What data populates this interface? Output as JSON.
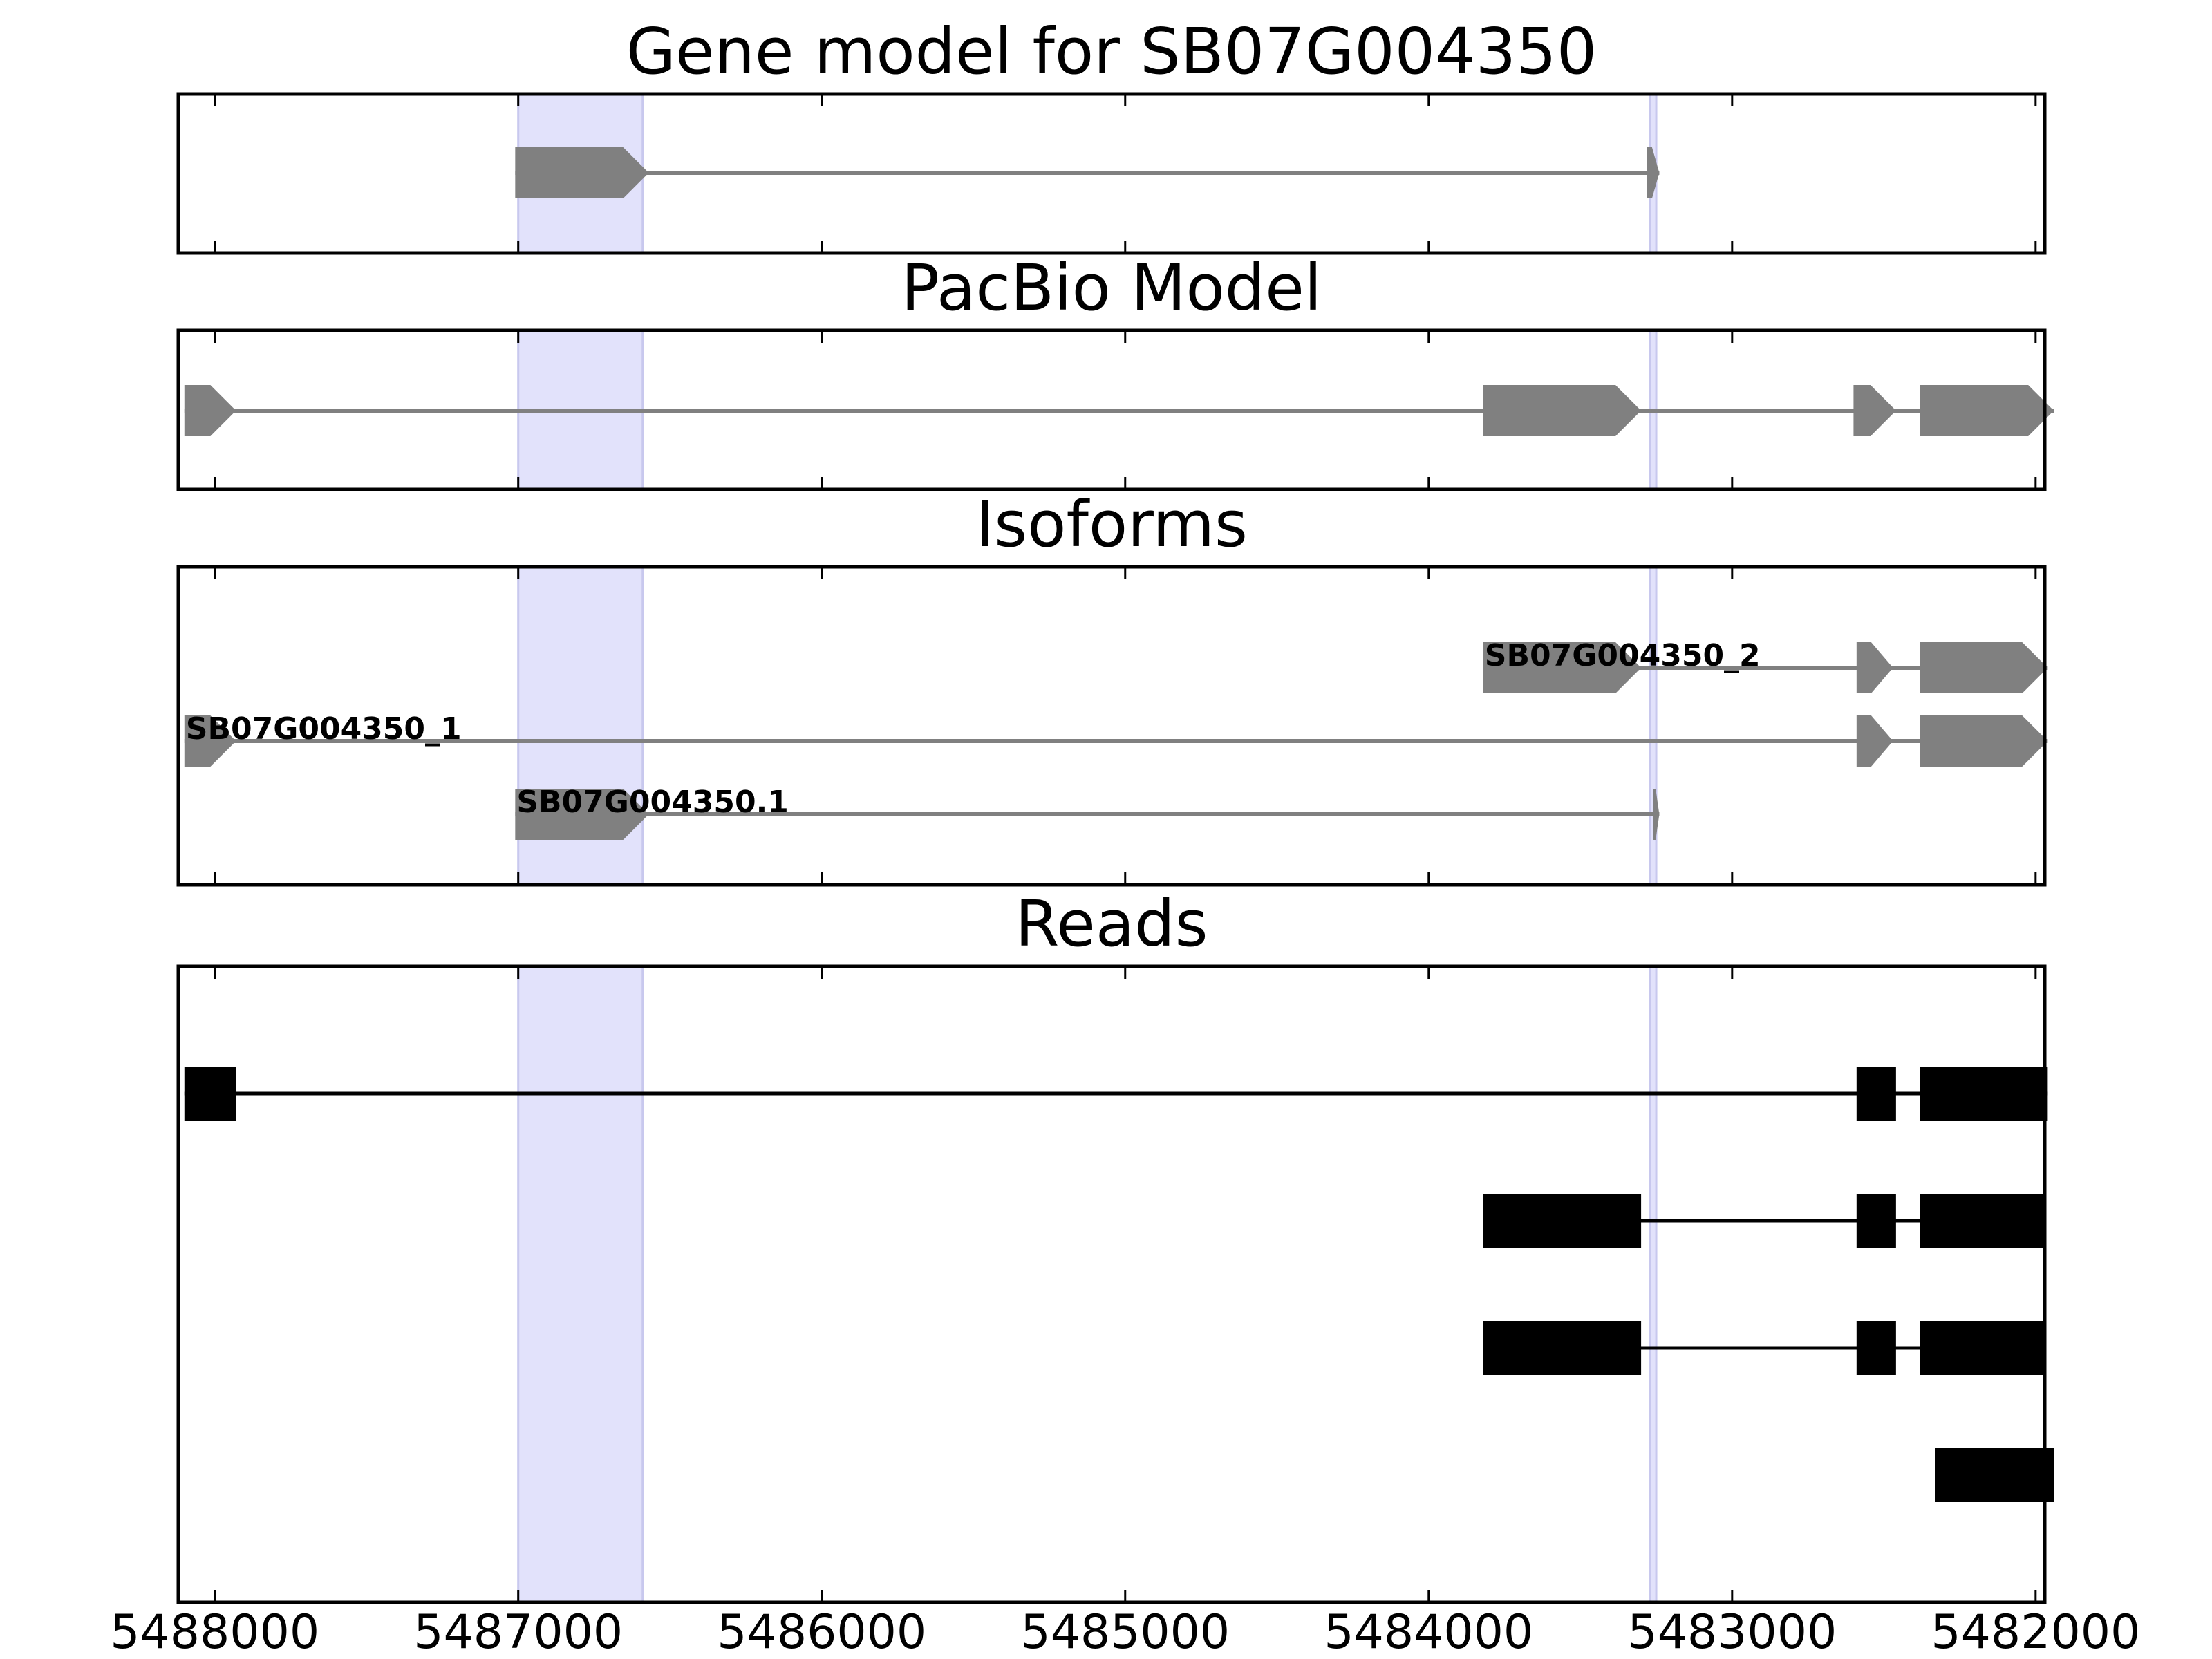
{
  "chart_data": {
    "type": "gene-track",
    "x_axis": {
      "reversed": true,
      "xlim": [
        5488120,
        5481970
      ],
      "ticks": [
        5488000,
        5487000,
        5486000,
        5485000,
        5484000,
        5483000,
        5482000
      ],
      "tick_labels": [
        "5488000",
        "5487000",
        "5486000",
        "5485000",
        "5484000",
        "5483000",
        "5482000"
      ]
    },
    "highlight_regions": [
      {
        "start": 5487000,
        "end": 5486590
      },
      {
        "start": 5483270,
        "end": 5483250
      }
    ],
    "colors": {
      "model": "#808080",
      "read": "#000000",
      "highlight": "#e2e2fb",
      "highlight_edge": "#c8c8ee"
    },
    "panels": [
      {
        "title": "Gene model for SB07G004350",
        "tracks": [
          {
            "label": "",
            "exons": [
              [
                5487010,
                5486570
              ],
              [
                5483280,
                5483240
              ]
            ]
          }
        ]
      },
      {
        "title": "PacBio Model",
        "tracks": [
          {
            "label": "",
            "exons": [
              [
                5488100,
                5487930
              ],
              [
                5483820,
                5483300
              ],
              [
                5482600,
                5482460
              ],
              [
                5482380,
                5481940
              ]
            ]
          }
        ]
      },
      {
        "title": "Isoforms",
        "tracks": [
          {
            "label": "SB07G004350_2",
            "exons": [
              [
                5483820,
                5483300
              ],
              [
                5482590,
                5482470
              ],
              [
                5482380,
                5481960
              ]
            ]
          },
          {
            "label": "SB07G004350_1",
            "exons": [
              [
                5488100,
                5487930
              ],
              [
                5482590,
                5482470
              ],
              [
                5482380,
                5481960
              ]
            ]
          },
          {
            "label": "SB07G004350.1",
            "exons": [
              [
                5487010,
                5486570
              ],
              [
                5483260,
                5483240
              ]
            ]
          }
        ]
      },
      {
        "title": "Reads",
        "tracks": [
          {
            "label": "",
            "exons": [
              [
                5488100,
                5487930
              ],
              [
                5482590,
                5482460
              ],
              [
                5482380,
                5481960
              ]
            ]
          },
          {
            "label": "",
            "exons": [
              [
                5483820,
                5483300
              ],
              [
                5482590,
                5482460
              ],
              [
                5482380,
                5481970
              ]
            ]
          },
          {
            "label": "",
            "exons": [
              [
                5483820,
                5483300
              ],
              [
                5482590,
                5482460
              ],
              [
                5482380,
                5481970
              ]
            ]
          },
          {
            "label": "",
            "exons": [
              [
                5482330,
                5481940
              ]
            ]
          }
        ]
      }
    ]
  }
}
